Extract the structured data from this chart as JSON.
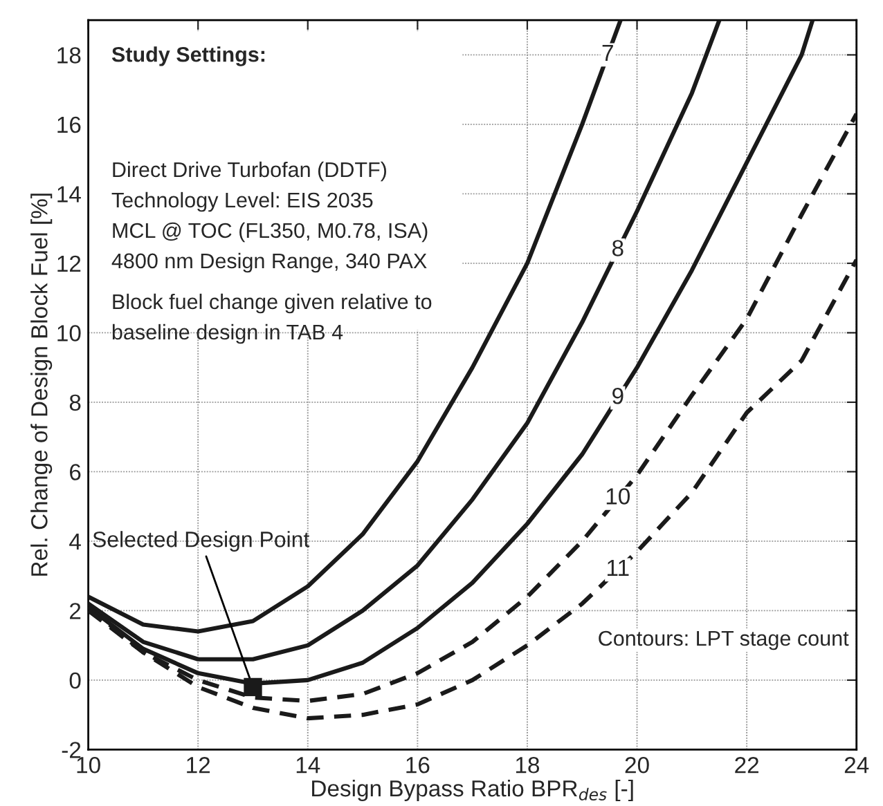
{
  "chart_data": {
    "type": "line",
    "xlabel": "Design Bypass Ratio BPR$_{des}$ [-]",
    "ylabel": "Rel. Change of Design Block Fuel [%]",
    "xlim": [
      10,
      24
    ],
    "xticks": [
      10,
      12,
      14,
      16,
      18,
      20,
      22,
      24
    ],
    "ylim": [
      -2,
      19
    ],
    "yticks": [
      -2,
      0,
      2,
      4,
      6,
      8,
      10,
      12,
      14,
      16,
      18
    ],
    "grid": true,
    "legend": false,
    "series": [
      {
        "name": "7",
        "color": "#1a1a1a",
        "line_style": "solid",
        "x": [
          10,
          11,
          12,
          13,
          14,
          15,
          16,
          17,
          18,
          19,
          19.7
        ],
        "values": [
          2.4,
          1.6,
          1.4,
          1.7,
          2.7,
          4.2,
          6.3,
          9.0,
          12.0,
          16.0,
          19.0
        ]
      },
      {
        "name": "8",
        "color": "#1a1a1a",
        "line_style": "solid",
        "x": [
          10,
          11,
          12,
          13,
          14,
          15,
          16,
          17,
          18,
          19,
          20,
          21,
          21.5
        ],
        "values": [
          2.2,
          1.1,
          0.6,
          0.6,
          1.0,
          2.0,
          3.3,
          5.2,
          7.4,
          10.3,
          13.5,
          16.9,
          19.0
        ]
      },
      {
        "name": "9",
        "color": "#1a1a1a",
        "line_style": "solid",
        "x": [
          10,
          11,
          12,
          13,
          14,
          15,
          16,
          17,
          18,
          19,
          20,
          21,
          22,
          23,
          23.2
        ],
        "values": [
          2.1,
          0.9,
          0.2,
          -0.1,
          0.0,
          0.5,
          1.5,
          2.8,
          4.5,
          6.5,
          9.0,
          11.8,
          14.9,
          18.0,
          19.0
        ]
      },
      {
        "name": "10",
        "color": "#1a1a1a",
        "line_style": "dashed",
        "x": [
          10,
          11,
          12,
          13,
          14,
          15,
          16,
          17,
          18,
          19,
          20,
          21,
          22,
          23,
          24
        ],
        "values": [
          2.1,
          0.8,
          0.0,
          -0.5,
          -0.6,
          -0.4,
          0.2,
          1.1,
          2.4,
          4.0,
          5.9,
          8.2,
          10.4,
          13.4,
          16.3
        ]
      },
      {
        "name": "11",
        "color": "#1a1a1a",
        "line_style": "dashed",
        "x": [
          10,
          11,
          12,
          13,
          14,
          15,
          16,
          17,
          18,
          19,
          20,
          21,
          22,
          23,
          24
        ],
        "values": [
          2.0,
          0.8,
          -0.2,
          -0.8,
          -1.1,
          -1.0,
          -0.7,
          0.0,
          1.0,
          2.2,
          3.7,
          5.4,
          7.7,
          9.2,
          12.1
        ]
      },
      {
        "type": "scatter",
        "color": "#1a1a1a",
        "marker": "square",
        "x": [
          13
        ],
        "values": [
          -0.2
        ]
      }
    ],
    "annotations": [
      "Study Settings:",
      "Direct Drive Turbofan (DDTF)\nTechnology Level: EIS 2035\nMCL @ TOC (FL350, M0.78, ISA)\n4800 nm Design Range, 340 PAX",
      "Block fuel change given relative to\nbaseline design in TAB 4",
      {
        "text": "Selected Design Point",
        "x": 13,
        "y": -0.2
      },
      "Contours: LPT stage count"
    ]
  }
}
